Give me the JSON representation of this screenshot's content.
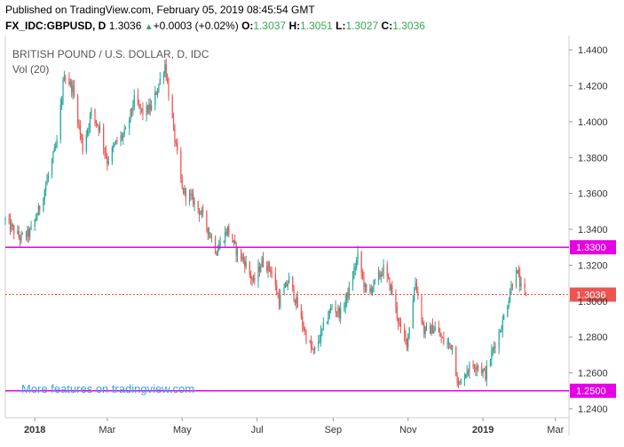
{
  "header": {
    "published": "Published on TradingView.com, February 05, 2019 08:45:54 GMT",
    "symbol": "FX_IDC:GBPUSD, D",
    "last": "1.3036",
    "change_arrow": "▲",
    "change": "+0.0003 (+0.02%)",
    "o_label": "O:",
    "o_value": "1.3037",
    "h_label": "H:",
    "h_value": "1.3051",
    "l_label": "L:",
    "l_value": "1.3027",
    "c_label": "C:",
    "c_value": "1.3036"
  },
  "legend": {
    "title": "BRITISH POUND / U.S. DOLLAR, D, IDC",
    "volume": "Vol (20)"
  },
  "promo": "More features on tradingview.com",
  "colors": {
    "up": "#26a69a",
    "down": "#ef5350",
    "level": "#e600e6",
    "last_price": "#ef5350"
  },
  "chart_data": {
    "type": "candlestick",
    "symbol": "GBPUSD",
    "interval": "D",
    "y_range": [
      1.235,
      1.448
    ],
    "y_ticks": [
      "1.4400",
      "1.4200",
      "1.4000",
      "1.3800",
      "1.3600",
      "1.3400",
      "1.3200",
      "1.3000",
      "1.2800",
      "1.2600",
      "1.2400"
    ],
    "y_tick_values": [
      1.44,
      1.42,
      1.4,
      1.38,
      1.36,
      1.34,
      1.32,
      1.3,
      1.28,
      1.26,
      1.24
    ],
    "x_ticks": [
      {
        "label": "2018",
        "date": "2018-01-01",
        "bold": true
      },
      {
        "label": "Mar",
        "date": "2018-03-01",
        "bold": false
      },
      {
        "label": "May",
        "date": "2018-05-01",
        "bold": false
      },
      {
        "label": "Jul",
        "date": "2018-07-01",
        "bold": false
      },
      {
        "label": "Sep",
        "date": "2018-09-01",
        "bold": false
      },
      {
        "label": "Nov",
        "date": "2018-11-01",
        "bold": false
      },
      {
        "label": "2019",
        "date": "2019-01-01",
        "bold": true
      },
      {
        "label": "Mar",
        "date": "2019-03-01",
        "bold": false
      }
    ],
    "x_range": [
      "2017-12-08",
      "2019-03-12"
    ],
    "levels": [
      {
        "value": 1.33,
        "label": "1.3300"
      },
      {
        "value": 1.25,
        "label": "1.2500"
      }
    ],
    "last_price": {
      "value": 1.3036,
      "label": "1.3036"
    },
    "anchors": [
      [
        "2017-12-08",
        1.345
      ],
      [
        "2017-12-20",
        1.335
      ],
      [
        "2017-12-28",
        1.338
      ],
      [
        "2018-01-05",
        1.352
      ],
      [
        "2018-01-12",
        1.37
      ],
      [
        "2018-01-19",
        1.388
      ],
      [
        "2018-01-25",
        1.427
      ],
      [
        "2018-02-01",
        1.418
      ],
      [
        "2018-02-09",
        1.385
      ],
      [
        "2018-02-16",
        1.405
      ],
      [
        "2018-02-23",
        1.396
      ],
      [
        "2018-03-01",
        1.378
      ],
      [
        "2018-03-08",
        1.388
      ],
      [
        "2018-03-16",
        1.394
      ],
      [
        "2018-03-23",
        1.412
      ],
      [
        "2018-03-30",
        1.405
      ],
      [
        "2018-04-06",
        1.408
      ],
      [
        "2018-04-17",
        1.432
      ],
      [
        "2018-04-24",
        1.395
      ],
      [
        "2018-05-01",
        1.362
      ],
      [
        "2018-05-10",
        1.356
      ],
      [
        "2018-05-18",
        1.347
      ],
      [
        "2018-05-29",
        1.328
      ],
      [
        "2018-06-07",
        1.34
      ],
      [
        "2018-06-14",
        1.328
      ],
      [
        "2018-06-21",
        1.322
      ],
      [
        "2018-06-28",
        1.31
      ],
      [
        "2018-07-05",
        1.322
      ],
      [
        "2018-07-12",
        1.318
      ],
      [
        "2018-07-19",
        1.3
      ],
      [
        "2018-07-27",
        1.312
      ],
      [
        "2018-08-03",
        1.297
      ],
      [
        "2018-08-10",
        1.28
      ],
      [
        "2018-08-16",
        1.271
      ],
      [
        "2018-08-24",
        1.285
      ],
      [
        "2018-08-31",
        1.297
      ],
      [
        "2018-09-07",
        1.293
      ],
      [
        "2018-09-14",
        1.306
      ],
      [
        "2018-09-21",
        1.325
      ],
      [
        "2018-09-28",
        1.304
      ],
      [
        "2018-10-05",
        1.31
      ],
      [
        "2018-10-12",
        1.318
      ],
      [
        "2018-10-19",
        1.305
      ],
      [
        "2018-10-26",
        1.283
      ],
      [
        "2018-10-31",
        1.277
      ],
      [
        "2018-11-07",
        1.311
      ],
      [
        "2018-11-14",
        1.283
      ],
      [
        "2018-11-23",
        1.285
      ],
      [
        "2018-11-30",
        1.277
      ],
      [
        "2018-12-07",
        1.275
      ],
      [
        "2018-12-12",
        1.252
      ],
      [
        "2018-12-19",
        1.262
      ],
      [
        "2018-12-27",
        1.265
      ],
      [
        "2019-01-03",
        1.259
      ],
      [
        "2019-01-10",
        1.275
      ],
      [
        "2019-01-17",
        1.288
      ],
      [
        "2019-01-24",
        1.308
      ],
      [
        "2019-01-28",
        1.318
      ],
      [
        "2019-02-01",
        1.307
      ],
      [
        "2019-02-05",
        1.3036
      ]
    ]
  }
}
